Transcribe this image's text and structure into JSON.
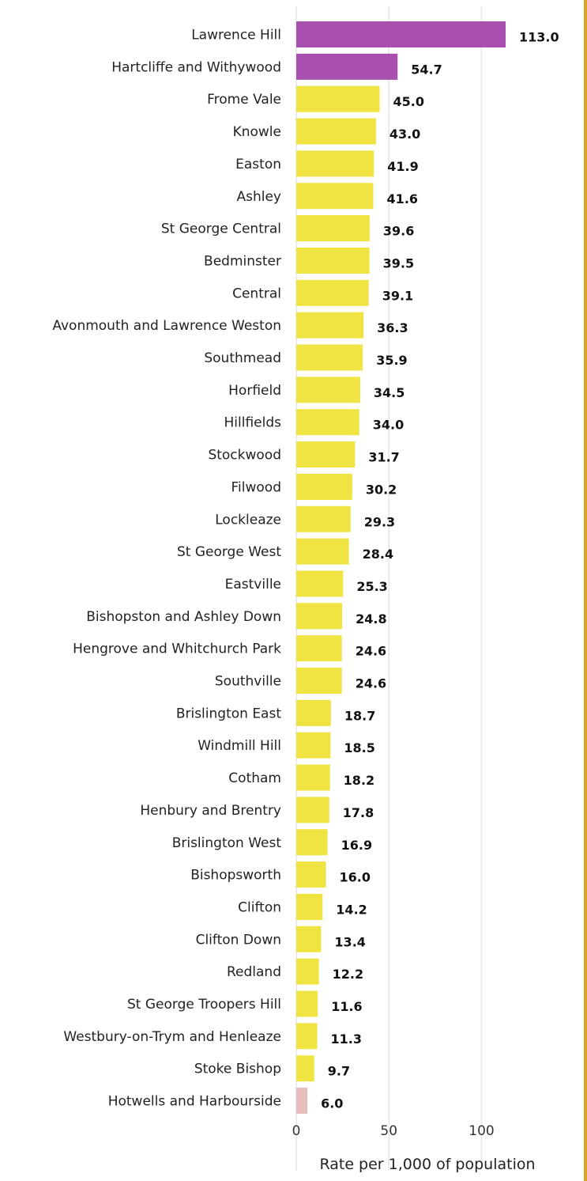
{
  "chart_data": {
    "type": "bar",
    "orientation": "horizontal",
    "categories": [
      "Lawrence Hill",
      "Hartcliffe and Withywood",
      "Frome Vale",
      "Knowle",
      "Easton",
      "Ashley",
      "St George Central",
      "Bedminster",
      "Central",
      "Avonmouth and Lawrence Weston",
      "Southmead",
      "Horfield",
      "Hillfields",
      "Stockwood",
      "Filwood",
      "Lockleaze",
      "St George West",
      "Eastville",
      "Bishopston and Ashley Down",
      "Hengrove and Whitchurch Park",
      "Southville",
      "Brislington East",
      "Windmill Hill",
      "Cotham",
      "Henbury and Brentry",
      "Brislington West",
      "Bishopsworth",
      "Clifton",
      "Clifton Down",
      "Redland",
      "St George Troopers Hill",
      "Westbury-on-Trym and Henleaze",
      "Stoke Bishop",
      "Hotwells and Harbourside"
    ],
    "values": [
      113.0,
      54.7,
      45.0,
      43.0,
      41.9,
      41.6,
      39.6,
      39.5,
      39.1,
      36.3,
      35.9,
      34.5,
      34.0,
      31.7,
      30.2,
      29.3,
      28.4,
      25.3,
      24.8,
      24.6,
      24.6,
      18.7,
      18.5,
      18.2,
      17.8,
      16.9,
      16.0,
      14.2,
      13.4,
      12.2,
      11.6,
      11.3,
      9.7,
      6.0
    ],
    "value_labels": [
      "113.0",
      "54.7",
      "45.0",
      "43.0",
      "41.9",
      "41.6",
      "39.6",
      "39.5",
      "39.1",
      "36.3",
      "35.9",
      "34.5",
      "34.0",
      "31.7",
      "30.2",
      "29.3",
      "28.4",
      "25.3",
      "24.8",
      "24.6",
      "24.6",
      "18.7",
      "18.5",
      "18.2",
      "17.8",
      "16.9",
      "16.0",
      "14.2",
      "13.4",
      "12.2",
      "11.6",
      "11.3",
      "9.7",
      "6.0"
    ],
    "bar_colors": [
      "#a84fb0",
      "#a84fb0",
      "#f0e442",
      "#f0e442",
      "#f0e442",
      "#f0e442",
      "#f0e442",
      "#f0e442",
      "#f0e442",
      "#f0e442",
      "#f0e442",
      "#f0e442",
      "#f0e442",
      "#f0e442",
      "#f0e442",
      "#f0e442",
      "#f0e442",
      "#f0e442",
      "#f0e442",
      "#f0e442",
      "#f0e442",
      "#f0e442",
      "#f0e442",
      "#f0e442",
      "#f0e442",
      "#f0e442",
      "#f0e442",
      "#f0e442",
      "#f0e442",
      "#f0e442",
      "#f0e442",
      "#f0e442",
      "#f0e442",
      "#e8bcbc"
    ],
    "xlim": [
      0,
      113
    ],
    "xticks": [
      0,
      50,
      100
    ],
    "xtick_labels": [
      "0",
      "50",
      "100"
    ],
    "xlabel": "Rate per 1,000 of population",
    "ylabel": "",
    "title": "",
    "grid": true,
    "legend": "none"
  },
  "colors": {
    "highlight": "#a84fb0",
    "default": "#f0e442",
    "low": "#e8bcbc",
    "gridline": "#e6e6e6",
    "frame_accent": "#d9a521"
  }
}
